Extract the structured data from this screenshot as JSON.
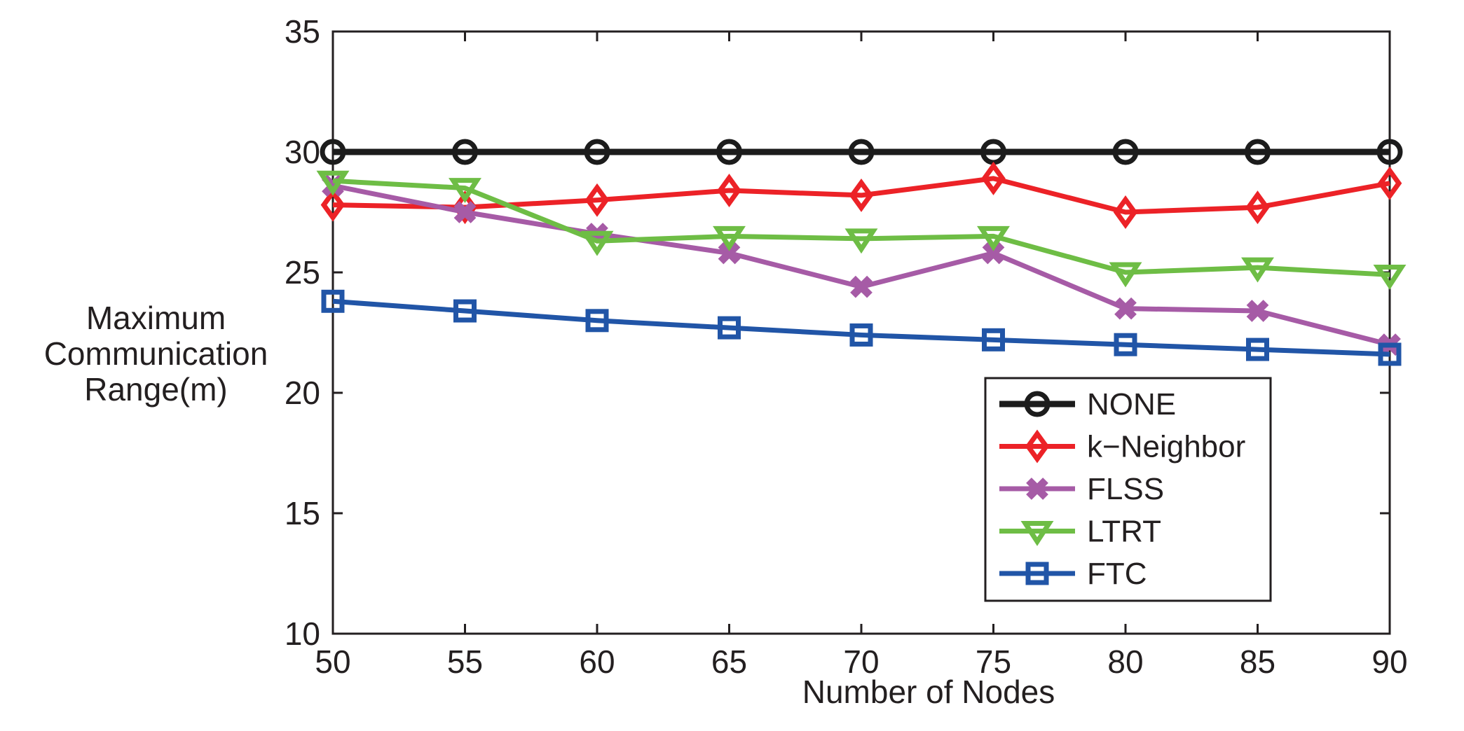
{
  "chart_data": {
    "type": "line",
    "x": [
      50,
      55,
      60,
      65,
      70,
      75,
      80,
      85,
      90
    ],
    "series": [
      {
        "name": "NONE",
        "marker": "circle",
        "color": "#1c1c1c",
        "values": [
          30,
          30,
          30,
          30,
          30,
          30,
          30,
          30,
          30
        ]
      },
      {
        "name": "k−Neighbor",
        "marker": "diamond",
        "color": "#ec2227",
        "values": [
          27.8,
          27.7,
          28.0,
          28.4,
          28.2,
          28.9,
          27.5,
          27.7,
          28.7
        ]
      },
      {
        "name": "FLSS",
        "marker": "x",
        "color": "#a65ba6",
        "values": [
          28.6,
          27.5,
          26.6,
          25.8,
          24.4,
          25.8,
          23.5,
          23.4,
          22.0
        ]
      },
      {
        "name": "LTRT",
        "marker": "triangle-down",
        "color": "#6ebd45",
        "values": [
          28.8,
          28.5,
          26.3,
          26.5,
          26.4,
          26.5,
          25.0,
          25.2,
          24.9
        ]
      },
      {
        "name": "FTC",
        "marker": "square",
        "color": "#2155a7",
        "values": [
          23.8,
          23.4,
          23.0,
          22.7,
          22.4,
          22.2,
          22.0,
          21.8,
          21.6
        ]
      }
    ],
    "xlabel": "Number of Nodes",
    "ylabel_lines": [
      "Maximum",
      "Communication",
      "Range(m)"
    ],
    "xlim": [
      50,
      90
    ],
    "ylim": [
      10,
      35
    ],
    "x_ticks": [
      50,
      55,
      60,
      65,
      70,
      75,
      80,
      85,
      90
    ],
    "y_ticks": [
      10,
      15,
      20,
      25,
      30,
      35
    ],
    "grid": false,
    "legend_position": "lower-right",
    "axis_color": "#231f20",
    "background": "#ffffff"
  }
}
